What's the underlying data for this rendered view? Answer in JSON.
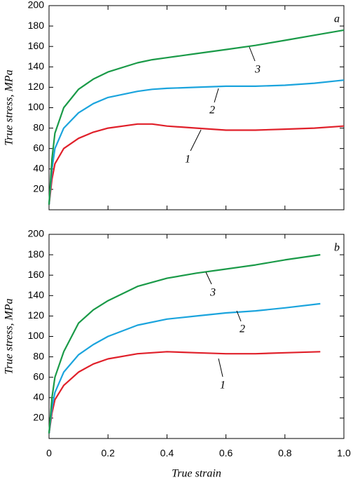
{
  "chart_data": [
    {
      "type": "line",
      "panel_label": "a",
      "ylabel": "True stress, MPa",
      "x": [
        0,
        0.01,
        0.02,
        0.05,
        0.1,
        0.15,
        0.2,
        0.3,
        0.35,
        0.4,
        0.5,
        0.6,
        0.7,
        0.8,
        0.9,
        1.0
      ],
      "series": [
        {
          "name": "1",
          "color": "#e0202a",
          "values": [
            5,
            30,
            45,
            60,
            70,
            76,
            80,
            84,
            84,
            82,
            80,
            78,
            78,
            79,
            80,
            82
          ]
        },
        {
          "name": "2",
          "color": "#1ba4dd",
          "values": [
            5,
            40,
            60,
            80,
            95,
            104,
            110,
            116,
            118,
            119,
            120,
            121,
            121,
            122,
            124,
            127
          ]
        },
        {
          "name": "3",
          "color": "#1a9a48",
          "values": [
            5,
            50,
            75,
            100,
            118,
            128,
            135,
            144,
            147,
            149,
            153,
            157,
            161,
            166,
            171,
            176
          ]
        }
      ],
      "xlim": [
        0,
        1
      ],
      "xticks": [
        0,
        0.2,
        0.4,
        0.6,
        0.8,
        1
      ],
      "xtick_labels": false,
      "ylim": [
        0,
        200
      ],
      "yticks": [
        20,
        40,
        60,
        80,
        100,
        120,
        140,
        160,
        180,
        200
      ]
    },
    {
      "type": "line",
      "panel_label": "b",
      "ylabel": "True stress, MPa",
      "xlabel": "True strain",
      "x": [
        0,
        0.01,
        0.02,
        0.05,
        0.1,
        0.15,
        0.2,
        0.3,
        0.4,
        0.5,
        0.6,
        0.7,
        0.8,
        0.92
      ],
      "series": [
        {
          "name": "1",
          "color": "#e0202a",
          "values": [
            5,
            25,
            38,
            52,
            65,
            73,
            78,
            83,
            85,
            84,
            83,
            83,
            84,
            85
          ]
        },
        {
          "name": "2",
          "color": "#1ba4dd",
          "values": [
            5,
            30,
            45,
            65,
            82,
            92,
            100,
            111,
            117,
            120,
            123,
            125,
            128,
            132
          ]
        },
        {
          "name": "3",
          "color": "#1a9a48",
          "values": [
            5,
            40,
            60,
            85,
            113,
            126,
            135,
            149,
            157,
            162,
            166,
            170,
            175,
            180
          ]
        }
      ],
      "xlim": [
        0,
        1
      ],
      "xticks": [
        0,
        0.2,
        0.4,
        0.6,
        0.8,
        {
          "value": 1,
          "label": "1.0"
        }
      ],
      "xtick_labels": true,
      "ylim": [
        0,
        200
      ],
      "yticks": [
        20,
        40,
        60,
        80,
        100,
        120,
        140,
        160,
        180,
        200
      ]
    }
  ]
}
